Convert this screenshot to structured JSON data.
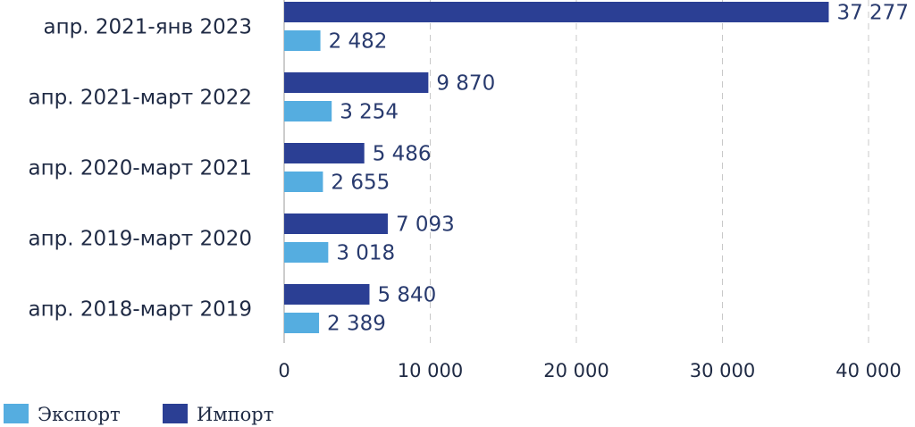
{
  "chart_data": {
    "type": "bar",
    "orientation": "horizontal",
    "categories": [
      "апр. 2021-янв 2023",
      "апр. 2021-март 2022",
      "апр. 2020-март 2021",
      "апр. 2019-март 2020",
      "апр. 2018-март 2019"
    ],
    "series": [
      {
        "name": "Импорт",
        "color": "#2b3f94",
        "values": [
          37277,
          9870,
          5486,
          7093,
          5840
        ],
        "value_labels": [
          "37 277",
          "9 870",
          "5 486",
          "7 093",
          "5 840"
        ]
      },
      {
        "name": "Экспорт",
        "color": "#55ade0",
        "values": [
          2482,
          3254,
          2655,
          3018,
          2389
        ],
        "value_labels": [
          "2 482",
          "3 254",
          "2 655",
          "3 018",
          "2 389"
        ]
      }
    ],
    "x_ticks": [
      0,
      10000,
      20000,
      30000,
      40000
    ],
    "x_tick_labels": [
      "0",
      "10 000",
      "20 000",
      "30 000",
      "40 000"
    ],
    "xlim": [
      0,
      40000
    ],
    "grid": true,
    "legend": {
      "position": "bottom-left",
      "items": [
        {
          "label": "Экспорт",
          "color": "#55ade0"
        },
        {
          "label": "Импорт",
          "color": "#2b3f94"
        }
      ]
    },
    "title": "",
    "xlabel": "",
    "ylabel": ""
  }
}
